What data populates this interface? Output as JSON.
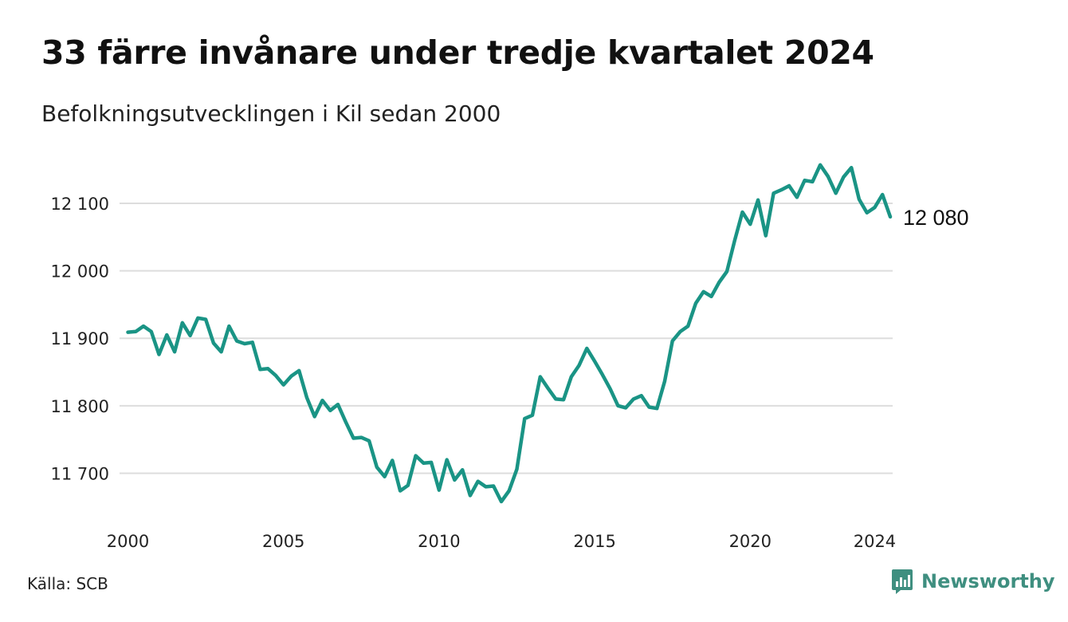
{
  "title": "33 färre invånare under tredje kvartalet 2024",
  "subtitle": "Befolkningsutvecklingen i Kil sedan 2000",
  "source": "Källa: SCB",
  "brand": {
    "name": "Newsworthy",
    "icon": "newsworthy-logo-icon",
    "color": "#3f8f80"
  },
  "colors": {
    "line": "#1a9485",
    "grid": "#dddddd"
  },
  "chart_data": {
    "type": "line",
    "title": "33 färre invånare under tredje kvartalet 2024",
    "subtitle": "Befolkningsutvecklingen i Kil sedan 2000",
    "xlabel": "",
    "ylabel": "",
    "ylim": [
      11645,
      12165
    ],
    "xlim": [
      2000,
      2025
    ],
    "grid": true,
    "legend": "none",
    "yticks": [
      11700,
      11800,
      11900,
      12000,
      12100
    ],
    "ytick_labels": [
      "11 700",
      "11 800",
      "11 900",
      "12 000",
      "12 100"
    ],
    "xticks": [
      2000,
      2005,
      2010,
      2015,
      2020,
      2024
    ],
    "xtick_labels": [
      "2000",
      "2005",
      "2010",
      "2015",
      "2020",
      "2024"
    ],
    "end_label": "12 080",
    "series": [
      {
        "x": [
          2000.0,
          2000.25,
          2000.5,
          2000.75,
          2001.0,
          2001.25,
          2001.5,
          2001.75,
          2002.0,
          2002.25,
          2002.5,
          2002.75,
          2003.0,
          2003.25,
          2003.5,
          2003.75,
          2004.0,
          2004.25,
          2004.5,
          2004.75,
          2005.0,
          2005.25,
          2005.5,
          2005.75,
          2006.0,
          2006.25,
          2006.5,
          2006.75,
          2007.0,
          2007.25,
          2007.5,
          2007.75,
          2008.0,
          2008.25,
          2008.5,
          2008.75,
          2009.0,
          2009.25,
          2009.5,
          2009.75,
          2010.0,
          2010.25,
          2010.5,
          2010.75,
          2011.0,
          2011.25,
          2011.5,
          2011.75,
          2012.0,
          2012.25,
          2012.5,
          2012.75,
          2013.0,
          2013.25,
          2013.5,
          2013.75,
          2014.0,
          2014.25,
          2014.5,
          2014.75,
          2015.0,
          2015.25,
          2015.5,
          2015.75,
          2016.0,
          2016.25,
          2016.5,
          2016.75,
          2017.0,
          2017.25,
          2017.5,
          2017.75,
          2018.0,
          2018.25,
          2018.5,
          2018.75,
          2019.0,
          2019.25,
          2019.5,
          2019.75,
          2020.0,
          2020.25,
          2020.5,
          2020.75,
          2021.0,
          2021.25,
          2021.5,
          2021.75,
          2022.0,
          2022.25,
          2022.5,
          2022.75,
          2023.0,
          2023.25,
          2023.5,
          2023.75,
          2024.0,
          2024.25,
          2024.5
        ],
        "values": [
          11909,
          11910,
          11918,
          11910,
          11876,
          11905,
          11880,
          11923,
          11904,
          11930,
          11928,
          11893,
          11880,
          11918,
          11896,
          11892,
          11894,
          11854,
          11855,
          11845,
          11831,
          11844,
          11852,
          11812,
          11784,
          11808,
          11793,
          11802,
          11776,
          11752,
          11753,
          11748,
          11709,
          11695,
          11719,
          11674,
          11682,
          11726,
          11715,
          11716,
          11675,
          11720,
          11690,
          11705,
          11667,
          11688,
          11680,
          11681,
          11658,
          11674,
          11706,
          11781,
          11786,
          11843,
          11826,
          11810,
          11809,
          11843,
          11860,
          11885,
          11866,
          11846,
          11825,
          11800,
          11797,
          11810,
          11815,
          11798,
          11796,
          11836,
          11896,
          11910,
          11918,
          11952,
          11969,
          11962,
          11983,
          11999,
          12045,
          12087,
          12069,
          12105,
          12052,
          12115,
          12120,
          12126,
          12109,
          12134,
          12132,
          12157,
          12140,
          12115,
          12139,
          12153,
          12106,
          12086,
          12094,
          12113,
          12080
        ]
      }
    ]
  }
}
